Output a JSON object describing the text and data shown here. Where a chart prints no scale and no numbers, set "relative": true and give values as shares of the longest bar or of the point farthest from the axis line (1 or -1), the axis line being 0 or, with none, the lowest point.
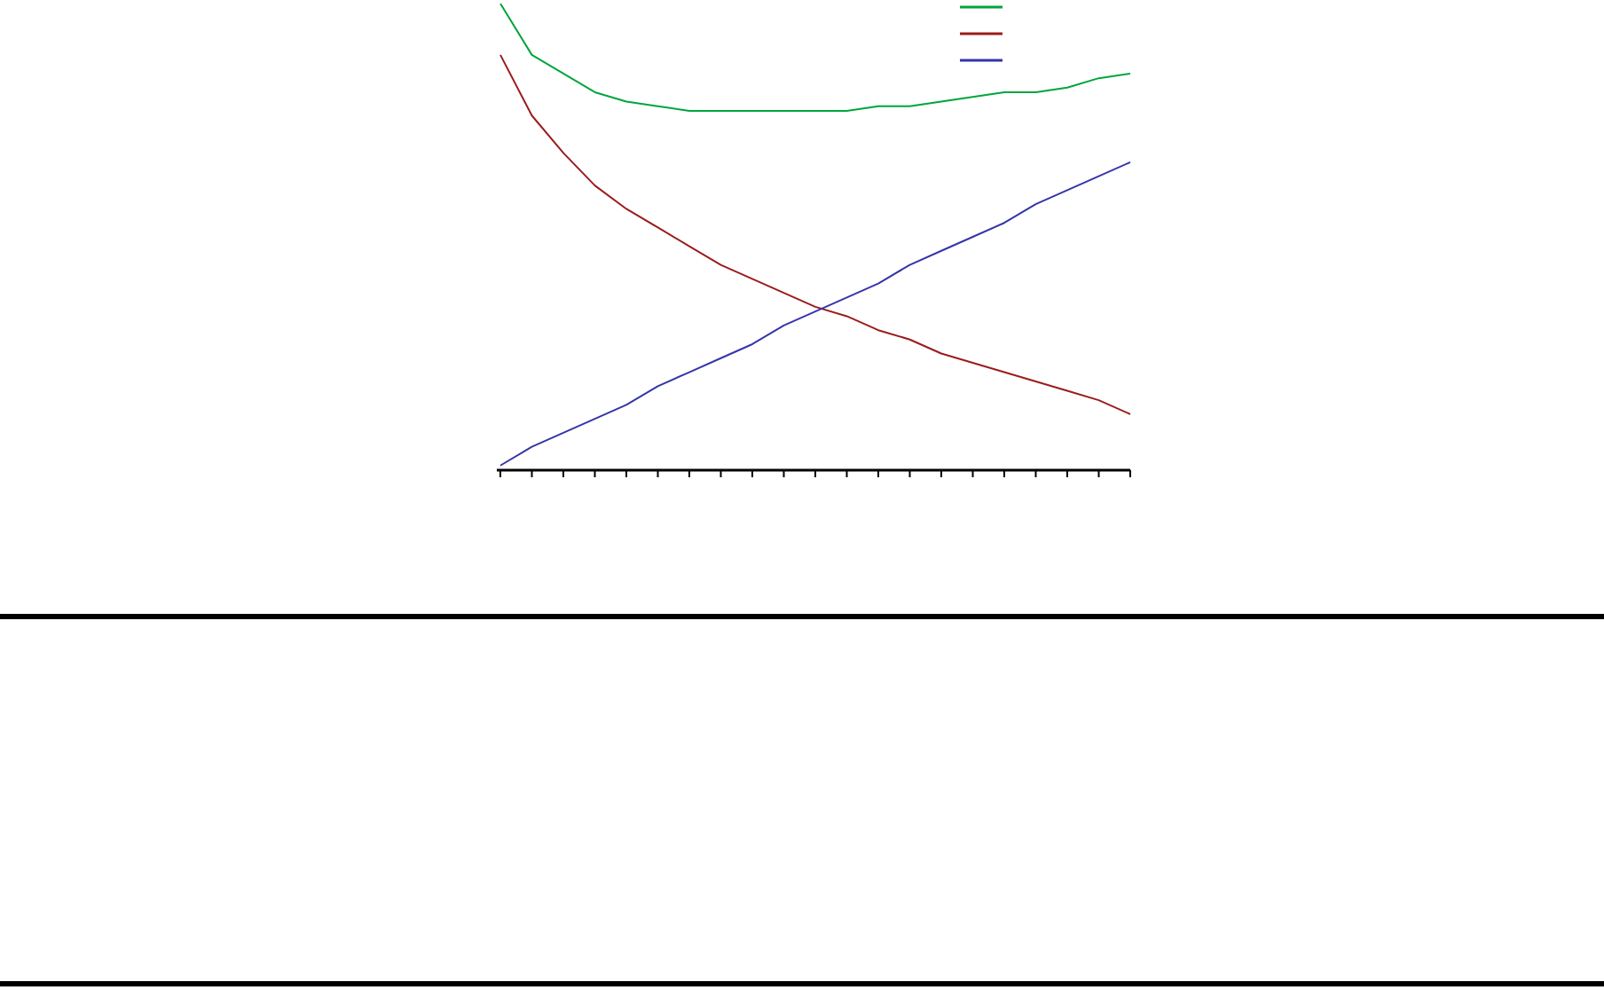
{
  "chart_data": {
    "type": "line",
    "relative": true,
    "marker": "none",
    "line_style": "solid",
    "grid": false,
    "categories": [
      null,
      null,
      null,
      null,
      null,
      null,
      null,
      null,
      null,
      null,
      null,
      null,
      null,
      null,
      null,
      null,
      null,
      null,
      null,
      null,
      null
    ],
    "series": [
      {
        "color": "#00a53c",
        "values": [
          1.0,
          0.89,
          0.85,
          0.81,
          0.79,
          0.78,
          0.77,
          0.77,
          0.77,
          0.77,
          0.77,
          0.77,
          0.78,
          0.78,
          0.79,
          0.8,
          0.81,
          0.81,
          0.82,
          0.84,
          0.85
        ]
      },
      {
        "color": "#9b1c1c",
        "values": [
          0.89,
          0.76,
          0.68,
          0.61,
          0.56,
          0.52,
          0.48,
          0.44,
          0.41,
          0.38,
          0.35,
          0.33,
          0.3,
          0.28,
          0.25,
          0.23,
          0.21,
          0.19,
          0.17,
          0.15,
          0.12
        ]
      },
      {
        "color": "#3535a8",
        "values": [
          0.01,
          0.05,
          0.08,
          0.11,
          0.14,
          0.18,
          0.21,
          0.24,
          0.27,
          0.31,
          0.34,
          0.37,
          0.4,
          0.44,
          0.47,
          0.5,
          0.53,
          0.57,
          0.6,
          0.63,
          0.66
        ]
      }
    ]
  }
}
